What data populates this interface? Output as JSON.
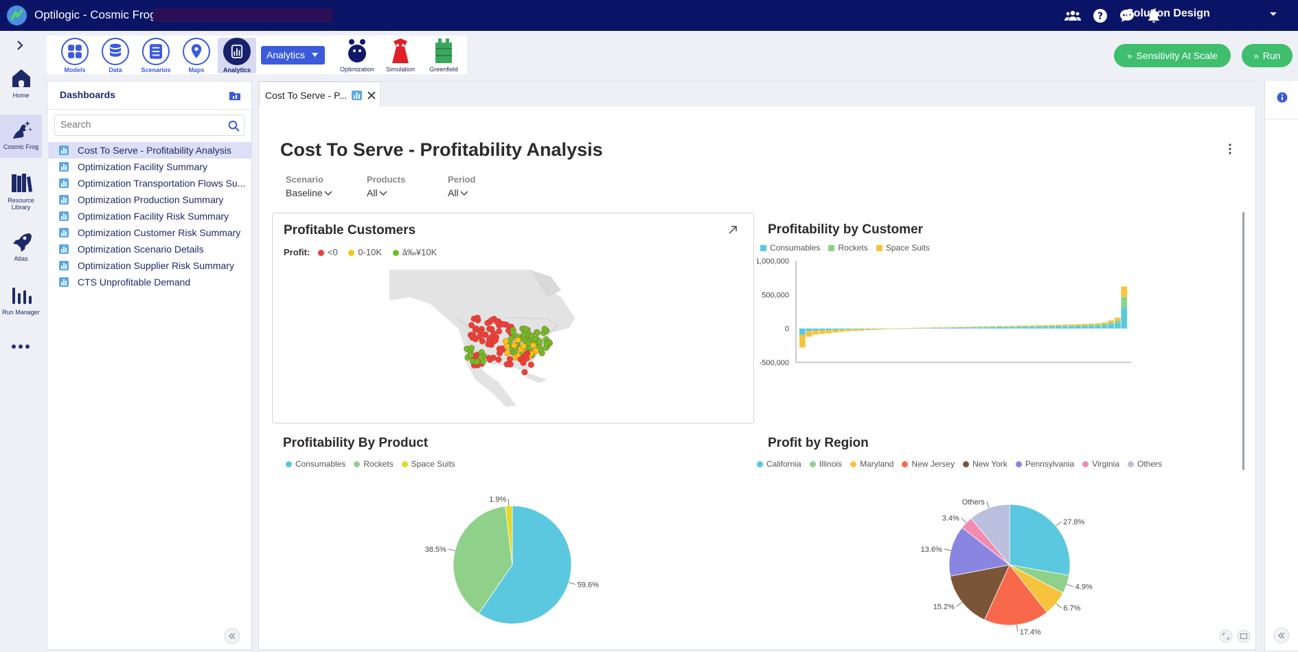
{
  "app": {
    "title": "Optilogic - Cosmic Frog",
    "workspace": "Solution Design"
  },
  "top_icons": [
    "team-icon",
    "help-icon",
    "chat-icon",
    "bell-icon"
  ],
  "leftnav": {
    "items": [
      {
        "label": "Home",
        "icon": "home-icon"
      },
      {
        "label": "Cosmic Frog",
        "icon": "frog-icon",
        "active": true
      },
      {
        "label": "Resource Library",
        "icon": "books-icon"
      },
      {
        "label": "Atlas",
        "icon": "rocket-icon"
      },
      {
        "label": "Run Manager",
        "icon": "bars-icon"
      }
    ]
  },
  "toolbar": {
    "buttons": [
      {
        "label": "Models"
      },
      {
        "label": "Data"
      },
      {
        "label": "Scenarios"
      },
      {
        "label": "Maps"
      },
      {
        "label": "Analytics",
        "active": true
      }
    ],
    "dropdown": "Analytics",
    "tools": [
      {
        "label": "Optimization"
      },
      {
        "label": "Simulation"
      },
      {
        "label": "Greenfield"
      }
    ],
    "sensitivity_label": "Sensitivity At Scale",
    "run_label": "Run"
  },
  "dashboards": {
    "header": "Dashboards",
    "search_placeholder": "Search",
    "items": [
      "Cost To Serve - Profitability Analysis",
      "Optimization Facility Summary",
      "Optimization Transportation Flows Su...",
      "Optimization Production Summary",
      "Optimization Facility Risk Summary",
      "Optimization Customer Risk Summary",
      "Optimization Scenario Details",
      "Optimization Supplier Risk Summary",
      "CTS Unprofitable Demand"
    ]
  },
  "tab": {
    "label": "Cost To Serve - P..."
  },
  "page": {
    "title": "Cost To Serve - Profitability Analysis",
    "filters": [
      {
        "label": "Scenario",
        "value": "Baseline"
      },
      {
        "label": "Products",
        "value": "All"
      },
      {
        "label": "Period",
        "value": "All"
      }
    ]
  },
  "cards": {
    "profitable_customers": {
      "title": "Profitable Customers",
      "legend_title": "Profit:",
      "legend": [
        {
          "label": "<0",
          "color": "#e8413c"
        },
        {
          "label": "0-10K",
          "color": "#f5c518"
        },
        {
          "label": "â‰¥10K",
          "color": "#6bbf2a"
        }
      ]
    },
    "profitability_by_customer": {
      "title": "Profitability by Customer"
    },
    "profitability_by_product": {
      "title": "Profitability By Product"
    },
    "profit_by_region": {
      "title": "Profit by Region"
    }
  },
  "chart_data": [
    {
      "type": "bar",
      "title": "Profitability by Customer",
      "stacked": true,
      "ylim": [
        -500000,
        1000000
      ],
      "yticks": [
        "1,000,000",
        "500,000",
        "0",
        "-500,000"
      ],
      "grid": false,
      "legend_position": "top-left",
      "series": [
        {
          "name": "Consumables",
          "color": "#5bc8df"
        },
        {
          "name": "Rockets",
          "color": "#8fd18a"
        },
        {
          "name": "Space Suits",
          "color": "#f7c33d"
        }
      ],
      "categories_count": 50,
      "totals_approx": [
        -280000,
        -120000,
        -90000,
        -80000,
        -70000,
        -60000,
        -50000,
        -40000,
        -35000,
        -30000,
        -25000,
        -20000,
        -15000,
        -10000,
        -5000,
        0,
        5000,
        10000,
        12000,
        14000,
        16000,
        18000,
        20000,
        22000,
        24000,
        26000,
        28000,
        30000,
        32000,
        34000,
        36000,
        38000,
        40000,
        42000,
        44000,
        46000,
        48000,
        50000,
        52000,
        55000,
        58000,
        61000,
        64000,
        68000,
        72000,
        78000,
        90000,
        120000,
        160000,
        620000
      ]
    },
    {
      "type": "pie",
      "title": "Profitability By Product",
      "legend_position": "top-left",
      "slices": [
        {
          "name": "Consumables",
          "value": 59.6,
          "color": "#5bc8df"
        },
        {
          "name": "Rockets",
          "value": 38.5,
          "color": "#8fd18a"
        },
        {
          "name": "Space Suits",
          "value": 1.9,
          "color": "#e5d62a"
        }
      ]
    },
    {
      "type": "pie",
      "title": "Profit by Region",
      "legend_position": "top-left",
      "slices": [
        {
          "name": "California",
          "value": 27.8,
          "color": "#5bc8df"
        },
        {
          "name": "Illinois",
          "value": 4.9,
          "color": "#8fd18a"
        },
        {
          "name": "Maryland",
          "value": 6.7,
          "color": "#f7c33d"
        },
        {
          "name": "New Jersey",
          "value": 17.4,
          "color": "#f7694a"
        },
        {
          "name": "New York",
          "value": 15.2,
          "color": "#7b5538"
        },
        {
          "name": "Pennsylvania",
          "value": 13.6,
          "color": "#8a85e0"
        },
        {
          "name": "Virginia",
          "value": 3.4,
          "color": "#f28bb0"
        },
        {
          "name": "Others",
          "value": 11.0,
          "color": "#b9bfdc",
          "show_label": "Others"
        }
      ]
    }
  ]
}
